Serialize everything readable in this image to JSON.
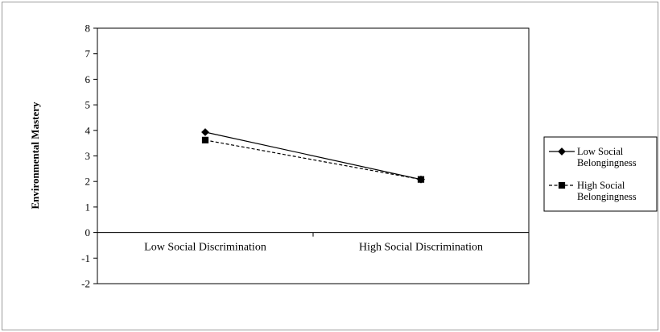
{
  "chart_data": {
    "type": "line",
    "title": "",
    "xlabel": "",
    "ylabel": "Environmental Mastery",
    "categories": [
      "Low Social Discrimination",
      "High Social Discrimination"
    ],
    "ylim": [
      -2,
      8
    ],
    "yticks": [
      "8",
      "7",
      "6",
      "5",
      "4",
      "3",
      "2",
      "1",
      "0",
      "-1",
      "-2"
    ],
    "grid": false,
    "legend_position": "right",
    "series": [
      {
        "name_lines": [
          "Low Social",
          "Belongingness"
        ],
        "values": [
          3.93,
          2.08
        ],
        "marker": "diamond",
        "line_style": "solid",
        "color": "#000000"
      },
      {
        "name_lines": [
          "High Social",
          "Belongingness"
        ],
        "values": [
          3.62,
          2.08
        ],
        "marker": "square",
        "line_style": "dashed",
        "color": "#000000"
      }
    ]
  }
}
